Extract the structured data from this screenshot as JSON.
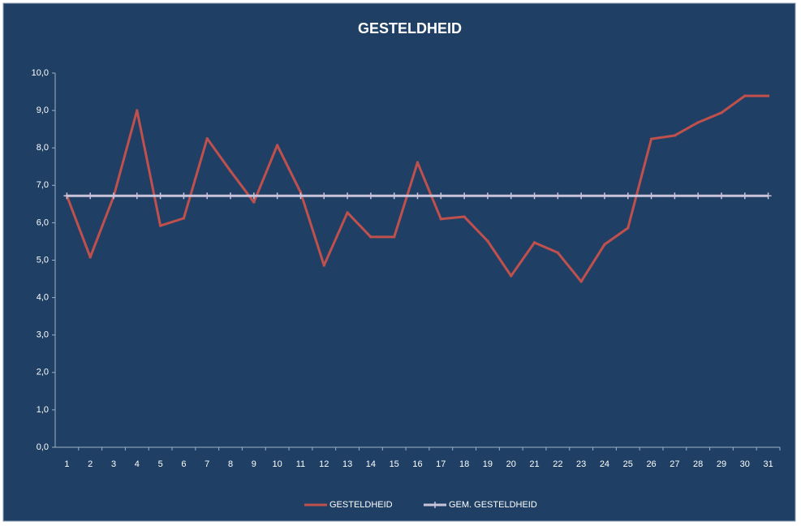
{
  "chart_data": {
    "type": "line",
    "title": "GESTELDHEID",
    "categories": [
      "1",
      "2",
      "3",
      "4",
      "5",
      "6",
      "7",
      "8",
      "9",
      "10",
      "11",
      "12",
      "13",
      "14",
      "15",
      "16",
      "17",
      "18",
      "19",
      "20",
      "21",
      "22",
      "23",
      "24",
      "25",
      "26",
      "27",
      "28",
      "29",
      "30",
      "31"
    ],
    "series": [
      {
        "name": "GESTELDHEID",
        "color": "#c0504d",
        "values": [
          6.72,
          5.08,
          6.7,
          9.0,
          5.92,
          6.12,
          8.25,
          7.38,
          6.55,
          8.07,
          6.81,
          4.86,
          6.27,
          5.62,
          5.62,
          7.61,
          6.1,
          6.16,
          5.51,
          4.58,
          5.47,
          5.2,
          4.43,
          5.42,
          5.86,
          8.24,
          8.33,
          8.68,
          8.94,
          9.39,
          9.39
        ]
      },
      {
        "name": "GEM. GESTELDHEID",
        "color": "#c9c3dc",
        "values": [
          6.72,
          6.72,
          6.72,
          6.72,
          6.72,
          6.72,
          6.72,
          6.72,
          6.72,
          6.72,
          6.72,
          6.72,
          6.72,
          6.72,
          6.72,
          6.72,
          6.72,
          6.72,
          6.72,
          6.72,
          6.72,
          6.72,
          6.72,
          6.72,
          6.72,
          6.72,
          6.72,
          6.72,
          6.72,
          6.72,
          6.72
        ]
      }
    ],
    "ylim": [
      0,
      10
    ],
    "yticks": [
      {
        "value": 0,
        "label": "0,0"
      },
      {
        "value": 1,
        "label": "1,0"
      },
      {
        "value": 2,
        "label": "2,0"
      },
      {
        "value": 3,
        "label": "3,0"
      },
      {
        "value": 4,
        "label": "4,0"
      },
      {
        "value": 5,
        "label": "5,0"
      },
      {
        "value": 6,
        "label": "6,0"
      },
      {
        "value": 7,
        "label": "7,0"
      },
      {
        "value": 8,
        "label": "8,0"
      },
      {
        "value": 9,
        "label": "9,0"
      },
      {
        "value": 10,
        "label": "10,0"
      }
    ],
    "grid": false,
    "legend": "bottom"
  }
}
